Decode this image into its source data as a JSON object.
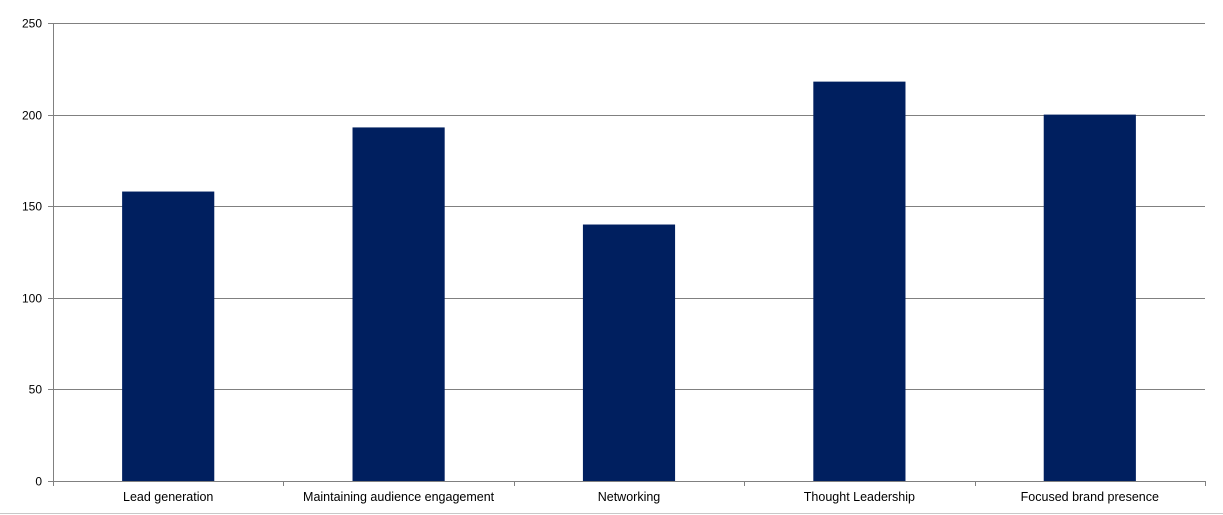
{
  "chart_data": {
    "type": "bar",
    "title": "",
    "xlabel": "",
    "ylabel": "",
    "categories": [
      "Lead generation",
      "Maintaining audience engagement",
      "Networking",
      "Thought Leadership",
      "Focused brand presence"
    ],
    "values": [
      158,
      193,
      140,
      218,
      200
    ],
    "ylim": [
      0,
      250
    ],
    "yticks": [
      0,
      50,
      100,
      150,
      200,
      250
    ],
    "grid": true,
    "legend": "none",
    "bar_color": "#001f5f",
    "gridline_color": "#808080",
    "axis_color": "#808080"
  }
}
